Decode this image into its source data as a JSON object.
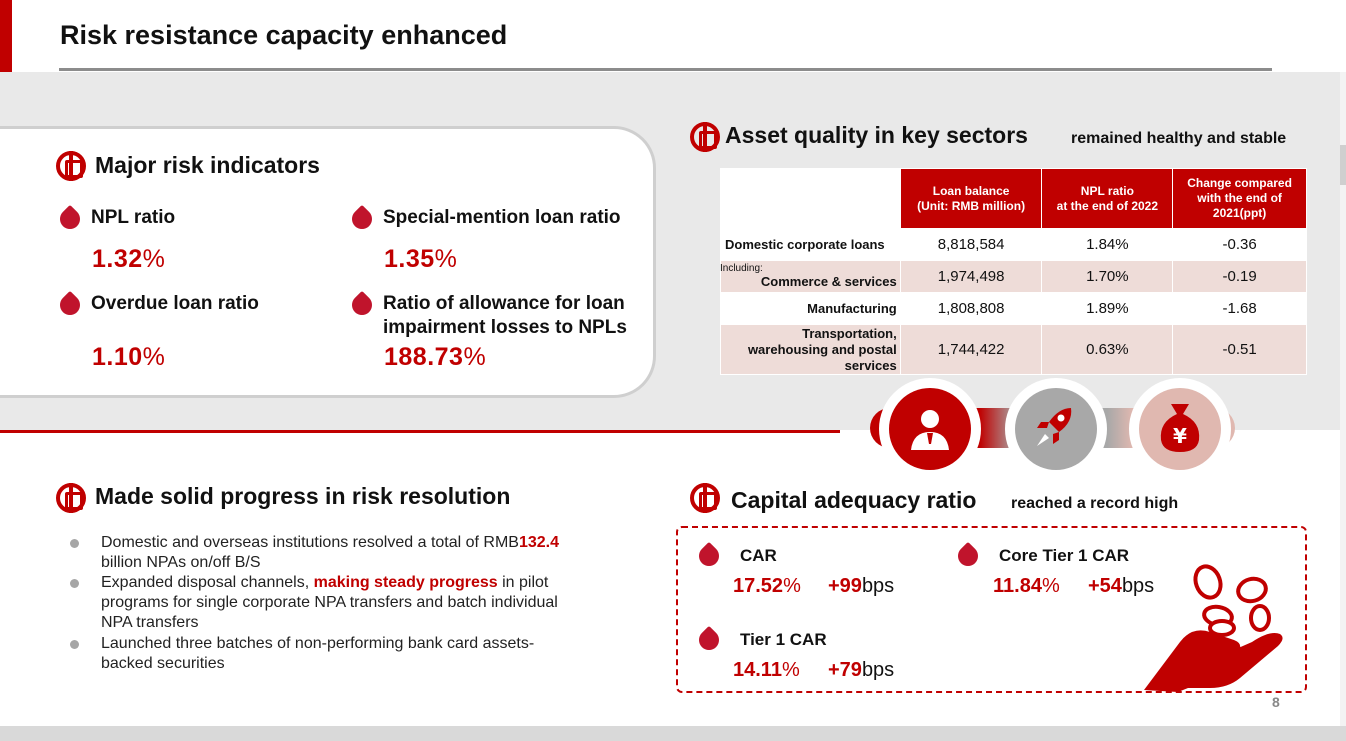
{
  "title": "Risk resistance capacity enhanced",
  "page_number": "8",
  "major_risk": {
    "heading": "Major risk indicators",
    "indicators": [
      {
        "label": "NPL ratio",
        "value": "1.32",
        "unit": "%"
      },
      {
        "label": "Special-mention loan ratio",
        "value": "1.35",
        "unit": "%"
      },
      {
        "label": "Overdue loan ratio",
        "value": "1.10",
        "unit": "%"
      },
      {
        "label_line1": "Ratio of allowance for loan",
        "label_line2": "impairment losses to NPLs",
        "value": "188.73",
        "unit": "%"
      }
    ]
  },
  "asset_quality": {
    "heading": "Asset quality in key sectors",
    "subheading": "remained healthy and stable",
    "columns": {
      "c1_l1": "Loan balance",
      "c1_l2": "(Unit: RMB million)",
      "c2_l1": "NPL ratio",
      "c2_l2": "at the end of 2022",
      "c3_l1": "Change compared",
      "c3_l2": "with the end of",
      "c3_l3": "2021(ppt)"
    },
    "rows": [
      {
        "sector": "Domestic corporate loans",
        "balance": "8,818,584",
        "npl": "1.84%",
        "change": "-0.36"
      },
      {
        "prefix": "Including:",
        "sector": "Commerce & services",
        "balance": "1,974,498",
        "npl": "1.70%",
        "change": "-0.19"
      },
      {
        "sector": "Manufacturing",
        "balance": "1,808,808",
        "npl": "1.89%",
        "change": "-1.68"
      },
      {
        "sector_l1": "Transportation,",
        "sector_l2": "warehousing and postal",
        "sector_l3": "services",
        "balance": "1,744,422",
        "npl": "0.63%",
        "change": "-0.51"
      }
    ]
  },
  "risk_resolution": {
    "heading": "Made solid progress in risk resolution",
    "b1_pre": "Domestic and overseas institutions resolved a total of RMB",
    "b1_hl": "132.4",
    "b1_post": "billion NPAs on/off B/S",
    "b2_pre": "Expanded disposal channels, ",
    "b2_hl": "making steady progress",
    "b2_post": " in pilot programs for single corporate NPA transfers and batch individual NPA transfers",
    "b3": "Launched three batches of non-performing bank card assets-backed securities"
  },
  "capital": {
    "heading": "Capital adequacy ratio",
    "subheading": "reached a record high",
    "items": [
      {
        "label": "CAR",
        "value": "17.52",
        "unit": "%",
        "delta": "+99",
        "delta_unit": "bps"
      },
      {
        "label": "Core Tier 1 CAR",
        "value": "11.84",
        "unit": "%",
        "delta": "+54",
        "delta_unit": "bps"
      },
      {
        "label": "Tier 1 CAR",
        "value": "14.11",
        "unit": "%",
        "delta": "+79",
        "delta_unit": "bps"
      }
    ]
  },
  "icons": [
    "person-icon",
    "rocket-icon",
    "money-bag-icon",
    "bank-logo-icon",
    "coins-hand-icon"
  ],
  "colors": {
    "accent": "#c00000",
    "band": "#e9e9e9",
    "shade": "#eedcd8"
  }
}
